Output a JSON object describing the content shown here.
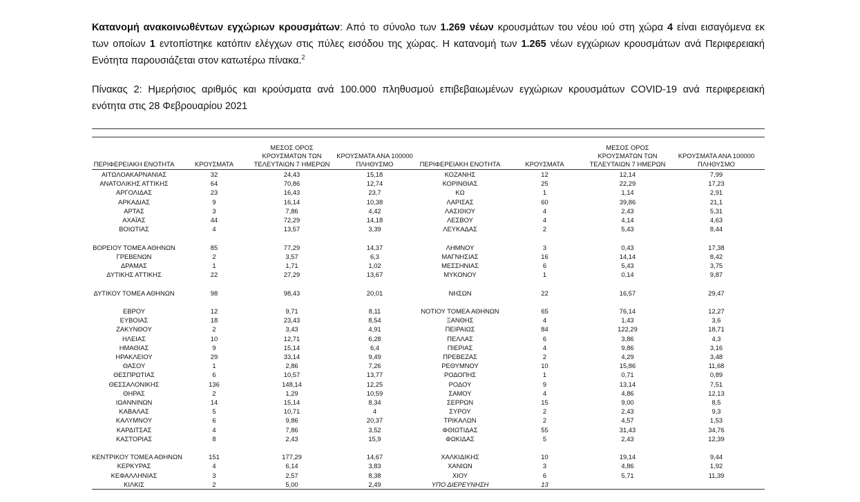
{
  "intro": {
    "lines": [
      [
        {
          "t": "Κατανομή ανακοινωθέντων εγχώριων κρουσμάτων",
          "b": true
        },
        {
          "t": ": Από το σύνολο των ",
          "b": false
        },
        {
          "t": "1.269 νέων",
          "b": true
        },
        {
          "t": " κρουσμάτων του νέου ιού στη χώρα ",
          "b": false
        },
        {
          "t": "4",
          "b": true
        },
        {
          "t": " είναι εισαγόμενα εκ",
          "b": false
        }
      ],
      [
        {
          "t": "των οποίων ",
          "b": false
        },
        {
          "t": "1",
          "b": true
        },
        {
          "t": " εντοπίστηκε κατόπιν ελέγχων στις πύλες εισόδου της χώρας. Η κατανομή των ",
          "b": false
        },
        {
          "t": "1.265",
          "b": true
        },
        {
          "t": " νέων εγχώριων κρουσμάτων ανά Περιφερειακή",
          "b": false
        }
      ],
      [
        {
          "t": "Ενότητα παρουσιάζεται στον κατωτέρω πίνακα.",
          "b": false
        }
      ]
    ],
    "footnote": "2"
  },
  "caption": {
    "lines": [
      "Πίνακας 2: Ημερήσιος αριθμός και κρούσματα ανά 100.000 πληθυσμού επιβεβαιωμένων εγχώριων κρουσμάτων COVID-19 ανά περιφερειακή",
      "ενότητα στις 28 Φεβρουαρίου 2021"
    ]
  },
  "table": {
    "headers": [
      "ΠΕΡΙΦΕΡΕΙΑΚΗ ΕΝΟΤΗΤΑ",
      "ΚΡΟΥΣΜΑΤΑ",
      "ΜΕΣΟΣ ΟΡΟΣ ΚΡΟΥΣΜΑΤΩΝ ΤΩΝ ΤΕΛΕΥΤΑΙΩΝ 7 ΗΜΕΡΩΝ",
      "ΚΡΟΥΣΜΑΤΑ ΑΝΑ 100000 ΠΛΗΘΥΣΜΟ"
    ],
    "groups": [
      [
        [
          [
            "ΑΙΤΩΛΟΑΚΑΡΝΑΝΙΑΣ",
            "32",
            "24,43",
            "15,18"
          ],
          [
            "ΚΟΖΑΝΗΣ",
            "12",
            "12,14",
            "7,99"
          ]
        ],
        [
          [
            "ΑΝΑΤΟΛΙΚΗΣ ΑΤΤΙΚΗΣ",
            "64",
            "70,86",
            "12,74"
          ],
          [
            "ΚΟΡΙΝΘΙΑΣ",
            "25",
            "22,29",
            "17,23"
          ]
        ],
        [
          [
            "ΑΡΓΟΛΙΔΑΣ",
            "23",
            "16,43",
            "23,7"
          ],
          [
            "ΚΩ",
            "1",
            "1,14",
            "2,91"
          ]
        ],
        [
          [
            "ΑΡΚΑΔΙΑΣ",
            "9",
            "16,14",
            "10,38"
          ],
          [
            "ΛΑΡΙΣΑΣ",
            "60",
            "39,86",
            "21,1"
          ]
        ],
        [
          [
            "ΑΡΤΑΣ",
            "3",
            "7,86",
            "4,42"
          ],
          [
            "ΛΑΣΙΘΙΟΥ",
            "4",
            "2,43",
            "5,31"
          ]
        ],
        [
          [
            "ΑΧΑΪΑΣ",
            "44",
            "72,29",
            "14,18"
          ],
          [
            "ΛΕΣΒΟΥ",
            "4",
            "4,14",
            "4,63"
          ]
        ],
        [
          [
            "ΒΟΙΩΤΙΑΣ",
            "4",
            "13,57",
            "3,39"
          ],
          [
            "ΛΕΥΚΑΔΑΣ",
            "2",
            "5,43",
            "8,44"
          ]
        ]
      ],
      [
        [
          [
            "ΒΟΡΕΙΟΥ ΤΟΜΕΑ ΑΘΗΝΩΝ",
            "85",
            "77,29",
            "14,37"
          ],
          [
            "ΛΗΜΝΟΥ",
            "3",
            "0,43",
            "17,38"
          ]
        ],
        [
          [
            "ΓΡΕΒΕΝΩΝ",
            "2",
            "3,57",
            "6,3"
          ],
          [
            "ΜΑΓΝΗΣΙΑΣ",
            "16",
            "14,14",
            "8,42"
          ]
        ],
        [
          [
            "ΔΡΑΜΑΣ",
            "1",
            "1,71",
            "1,02"
          ],
          [
            "ΜΕΣΣΗΝΙΑΣ",
            "6",
            "5,43",
            "3,75"
          ]
        ],
        [
          [
            "ΔΥΤΙΚΗΣ ΑΤΤΙΚΗΣ",
            "22",
            "27,29",
            "13,67"
          ],
          [
            "ΜΥΚΟΝΟΥ",
            "1",
            "0,14",
            "9,87"
          ]
        ]
      ],
      [
        [
          [
            "ΔΥΤΙΚΟΥ ΤΟΜΕΑ ΑΘΗΝΩΝ",
            "98",
            "98,43",
            "20,01"
          ],
          [
            "ΝΗΣΩΝ",
            "22",
            "16,57",
            "29,47"
          ]
        ]
      ],
      [
        [
          [
            "ΕΒΡΟΥ",
            "12",
            "9,71",
            "8,11"
          ],
          [
            "ΝΟΤΙΟΥ ΤΟΜΕΑ ΑΘΗΝΩΝ",
            "65",
            "76,14",
            "12,27"
          ]
        ],
        [
          [
            "ΕΥΒΟΙΑΣ",
            "18",
            "23,43",
            "8,54"
          ],
          [
            "ΞΑΝΘΗΣ",
            "4",
            "1,43",
            "3,6"
          ]
        ],
        [
          [
            "ΖΑΚΥΝΘΟΥ",
            "2",
            "3,43",
            "4,91"
          ],
          [
            "ΠΕΙΡΑΙΩΣ",
            "84",
            "122,29",
            "18,71"
          ]
        ],
        [
          [
            "ΗΛΕΙΑΣ",
            "10",
            "12,71",
            "6,28"
          ],
          [
            "ΠΕΛΛΑΣ",
            "6",
            "3,86",
            "4,3"
          ]
        ],
        [
          [
            "ΗΜΑΘΙΑΣ",
            "9",
            "15,14",
            "6,4"
          ],
          [
            "ΠΙΕΡΙΑΣ",
            "4",
            "9,86",
            "3,16"
          ]
        ],
        [
          [
            "ΗΡΑΚΛΕΙΟΥ",
            "29",
            "33,14",
            "9,49"
          ],
          [
            "ΠΡΕΒΕΖΑΣ",
            "2",
            "4,29",
            "3,48"
          ]
        ],
        [
          [
            "ΘΑΣΟΥ",
            "1",
            "2,86",
            "7,26"
          ],
          [
            "ΡΕΘΥΜΝΟΥ",
            "10",
            "15,86",
            "11,68"
          ]
        ],
        [
          [
            "ΘΕΣΠΡΩΤΙΑΣ",
            "6",
            "10,57",
            "13,77"
          ],
          [
            "ΡΟΔΟΠΗΣ",
            "1",
            "0,71",
            "0,89"
          ]
        ],
        [
          [
            "ΘΕΣΣΑΛΟΝΙΚΗΣ",
            "136",
            "148,14",
            "12,25"
          ],
          [
            "ΡΟΔΟΥ",
            "9",
            "13,14",
            "7,51"
          ]
        ],
        [
          [
            "ΘΗΡΑΣ",
            "2",
            "1,29",
            "10,59"
          ],
          [
            "ΣΑΜΟΥ",
            "4",
            "4,86",
            "12,13"
          ]
        ],
        [
          [
            "ΙΩΑΝΝΙΝΩΝ",
            "14",
            "15,14",
            "8,34"
          ],
          [
            "ΣΕΡΡΩΝ",
            "15",
            "9,00",
            "8,5"
          ]
        ],
        [
          [
            "ΚΑΒΑΛΑΣ",
            "5",
            "10,71",
            "4"
          ],
          [
            "ΣΥΡΟΥ",
            "2",
            "2,43",
            "9,3"
          ]
        ],
        [
          [
            "ΚΑΛΥΜΝΟΥ",
            "6",
            "9,86",
            "20,37"
          ],
          [
            "ΤΡΙΚΑΛΩΝ",
            "2",
            "4,57",
            "1,53"
          ]
        ],
        [
          [
            "ΚΑΡΔΙΤΣΑΣ",
            "4",
            "7,86",
            "3,52"
          ],
          [
            "ΦΘΙΩΤΙΔΑΣ",
            "55",
            "31,43",
            "34,76"
          ]
        ],
        [
          [
            "ΚΑΣΤΟΡΙΑΣ",
            "8",
            "2,43",
            "15,9"
          ],
          [
            "ΦΩΚΙΔΑΣ",
            "5",
            "2,43",
            "12,39"
          ]
        ]
      ],
      [
        [
          [
            "ΚΕΝΤΡΙΚΟΥ ΤΟΜΕΑ ΑΘΗΝΩΝ",
            "151",
            "177,29",
            "14,67"
          ],
          [
            "ΧΑΛΚΙΔΙΚΗΣ",
            "10",
            "19,14",
            "9,44"
          ]
        ],
        [
          [
            "ΚΕΡΚΥΡΑΣ",
            "4",
            "6,14",
            "3,83"
          ],
          [
            "ΧΑΝΙΩΝ",
            "3",
            "4,86",
            "1,92"
          ]
        ],
        [
          [
            "ΚΕΦΑΛΛΗΝΙΑΣ",
            "3",
            "2,57",
            "8,38"
          ],
          [
            "ΧΙΟΥ",
            "6",
            "5,71",
            "11,39"
          ]
        ],
        [
          [
            "ΚΙΛΚΙΣ",
            "2",
            "5,00",
            "2,49"
          ],
          [
            "ΥΠΟ ΔΙΕΡΕΥΝΗΣΗ",
            "13",
            "",
            ""
          ]
        ]
      ]
    ],
    "italic_labels": [
      "ΥΠΟ ΔΙΕΡΕΥΝΗΣΗ"
    ]
  }
}
